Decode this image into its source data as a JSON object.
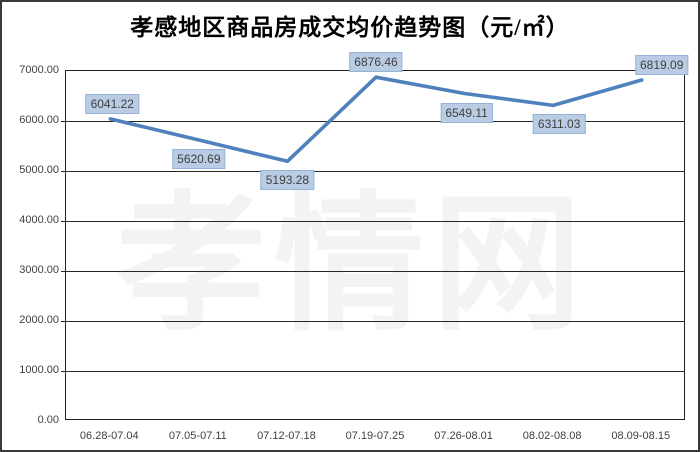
{
  "chart_data": {
    "type": "line",
    "title": "孝感地区商品房成交均价趋势图（元/㎡）",
    "categories": [
      "06.28-07.04",
      "07.05-07.11",
      "07.12-07.18",
      "07.19-07.25",
      "07.26-08.01",
      "08.02-08.08",
      "08.09-08.15"
    ],
    "values": [
      6041.22,
      5620.69,
      5193.28,
      6876.46,
      6549.11,
      6311.03,
      6819.09
    ],
    "point_labels": [
      "6041.22",
      "5620.69",
      "5193.28",
      "6876.46",
      "6549.11",
      "6311.03",
      "6819.09"
    ],
    "label_sides": [
      "above",
      "below",
      "below",
      "above",
      "below",
      "below",
      "above"
    ],
    "label_dx": [
      2,
      0,
      0,
      0,
      2,
      6,
      20
    ],
    "xlabel": "",
    "ylabel": "",
    "ylim": [
      0,
      7000
    ],
    "ytick_step": 1000,
    "yticks": [
      "7000.00",
      "6000.00",
      "5000.00",
      "4000.00",
      "3000.00",
      "2000.00",
      "1000.00",
      "0.00"
    ],
    "grid": "horizontal",
    "legend": "none",
    "watermark": "孝情网",
    "colors": {
      "line": "#4F81BD",
      "label_bg": "#B9CCE4",
      "label_border": "#95B3D7",
      "label_text": "#404040",
      "grid": "#262626",
      "axis_text": "#3F3F3F",
      "watermark": "#F3F3F3",
      "background": "#FFFFFF"
    }
  }
}
